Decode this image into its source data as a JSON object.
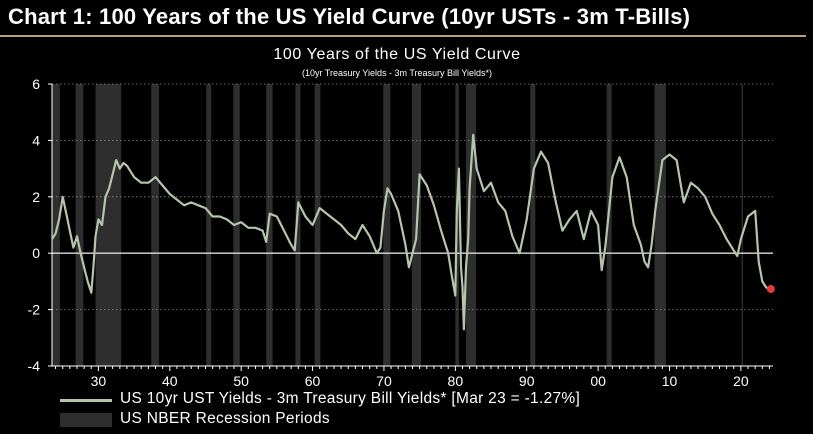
{
  "header": {
    "title": "Chart 1: 100 Years of the US Yield Curve (10yr USTs - 3m T-Bills)"
  },
  "colors": {
    "line": "#b5c5ab",
    "recession": "#2e2e2e",
    "endpoint": "#e8393a",
    "accent_rule": "#b8a56a"
  },
  "legend": {
    "series_label": "US 10yr UST Yields - 3m Treasury Bill Yields* [Mar 23 = -1.27%]",
    "recession_label": "US NBER Recession Periods"
  },
  "chart_data": {
    "type": "line",
    "title": "100 Years of the US Yield Curve",
    "subtitle": "(10yr Treasury Yields - 3m Treasury Bill Yields*)",
    "xlabel": "",
    "ylabel": "",
    "xlim": [
      1923.5,
      2024.5
    ],
    "ylim": [
      -4,
      6
    ],
    "grid": "horizontal",
    "y_ticks": [
      -4,
      -2,
      0,
      2,
      4,
      6
    ],
    "y_tick_labels": [
      "-4",
      "-2",
      "0",
      "2",
      "4",
      "6"
    ],
    "x_ticks": [
      1930,
      1940,
      1950,
      1960,
      1970,
      1980,
      1990,
      2000,
      2010,
      2020
    ],
    "x_tick_labels": [
      "30",
      "40",
      "50",
      "60",
      "70",
      "80",
      "90",
      "00",
      "10",
      "20"
    ],
    "recessions": [
      [
        1923.4,
        1924.6
      ],
      [
        1926.8,
        1927.9
      ],
      [
        1929.6,
        1933.2
      ],
      [
        1937.4,
        1938.5
      ],
      [
        1945.1,
        1945.8
      ],
      [
        1948.9,
        1949.8
      ],
      [
        1953.5,
        1954.4
      ],
      [
        1957.6,
        1958.3
      ],
      [
        1960.3,
        1961.1
      ],
      [
        1969.9,
        1970.9
      ],
      [
        1973.9,
        1975.2
      ],
      [
        1980.0,
        1980.5
      ],
      [
        1981.5,
        1982.9
      ],
      [
        1990.5,
        1991.2
      ],
      [
        2001.2,
        2001.9
      ],
      [
        2007.9,
        2009.5
      ],
      [
        2020.1,
        2020.3
      ]
    ],
    "series": [
      {
        "name": "US 10yr UST Yields - 3m Treasury Bill Yields*",
        "x": [
          1923.5,
          1924,
          1924.5,
          1925,
          1925.5,
          1926,
          1926.5,
          1927,
          1927.5,
          1928,
          1928.5,
          1929,
          1929.3,
          1929.6,
          1930,
          1930.5,
          1931,
          1931.5,
          1932,
          1932.5,
          1933,
          1933.5,
          1934,
          1934.5,
          1935,
          1936,
          1937,
          1938,
          1939,
          1940,
          1941,
          1942,
          1943,
          1944,
          1945,
          1946,
          1947,
          1948,
          1949,
          1950,
          1951,
          1952,
          1953,
          1953.5,
          1954,
          1955,
          1956,
          1957,
          1957.5,
          1958,
          1959,
          1960,
          1961,
          1962,
          1963,
          1964,
          1965,
          1966,
          1967,
          1968,
          1969,
          1969.5,
          1970,
          1970.5,
          1971,
          1972,
          1973,
          1973.5,
          1974,
          1974.5,
          1975,
          1976,
          1977,
          1978,
          1978.5,
          1979,
          1979.5,
          1980,
          1980.2,
          1980.5,
          1980.8,
          1981,
          1981.2,
          1981.5,
          1981.8,
          1982,
          1982.5,
          1983,
          1984,
          1985,
          1986,
          1987,
          1988,
          1989,
          1990,
          1991,
          1992,
          1993,
          1994,
          1995,
          1996,
          1997,
          1998,
          1999,
          2000,
          2000.5,
          2001,
          2002,
          2003,
          2004,
          2005,
          2006,
          2006.5,
          2007,
          2007.5,
          2008,
          2009,
          2010,
          2011,
          2012,
          2013,
          2014,
          2015,
          2016,
          2017,
          2018,
          2019,
          2019.5,
          2020,
          2021,
          2022,
          2022.5,
          2023,
          2023.5,
          2024,
          2024.2
        ],
        "values": [
          0.5,
          0.7,
          1.2,
          2.0,
          1.4,
          0.8,
          0.2,
          0.6,
          0.0,
          -0.5,
          -1.0,
          -1.4,
          -0.5,
          0.6,
          1.2,
          1.0,
          2.0,
          2.3,
          2.8,
          3.3,
          3.0,
          3.2,
          3.1,
          2.9,
          2.7,
          2.5,
          2.5,
          2.7,
          2.4,
          2.1,
          1.9,
          1.7,
          1.8,
          1.7,
          1.6,
          1.3,
          1.3,
          1.2,
          1.0,
          1.1,
          0.9,
          0.9,
          0.8,
          0.4,
          1.4,
          1.3,
          0.8,
          0.3,
          0.1,
          1.8,
          1.3,
          1.0,
          1.6,
          1.4,
          1.2,
          1.0,
          0.7,
          0.5,
          1.0,
          0.6,
          0.0,
          0.2,
          1.5,
          2.3,
          2.1,
          1.5,
          0.3,
          -0.5,
          0.0,
          0.5,
          2.8,
          2.4,
          1.7,
          0.8,
          0.4,
          0.0,
          -0.8,
          -1.5,
          1.5,
          3.0,
          -0.5,
          -1.2,
          -2.7,
          -0.5,
          0.5,
          2.3,
          4.2,
          3.0,
          2.2,
          2.5,
          1.8,
          1.5,
          0.6,
          0.0,
          1.2,
          3.0,
          3.6,
          3.2,
          1.9,
          0.8,
          1.2,
          1.5,
          0.5,
          1.5,
          1.0,
          -0.6,
          0.2,
          2.7,
          3.4,
          2.7,
          1.0,
          0.3,
          -0.3,
          -0.5,
          0.3,
          1.5,
          3.3,
          3.5,
          3.3,
          1.8,
          2.5,
          2.3,
          2.0,
          1.4,
          1.0,
          0.5,
          0.1,
          -0.1,
          0.5,
          1.3,
          1.5,
          -0.3,
          -1.0,
          -1.2,
          -1.3,
          -1.27
        ]
      }
    ],
    "endpoint": {
      "label": "Mar 23",
      "value": -1.27
    }
  }
}
